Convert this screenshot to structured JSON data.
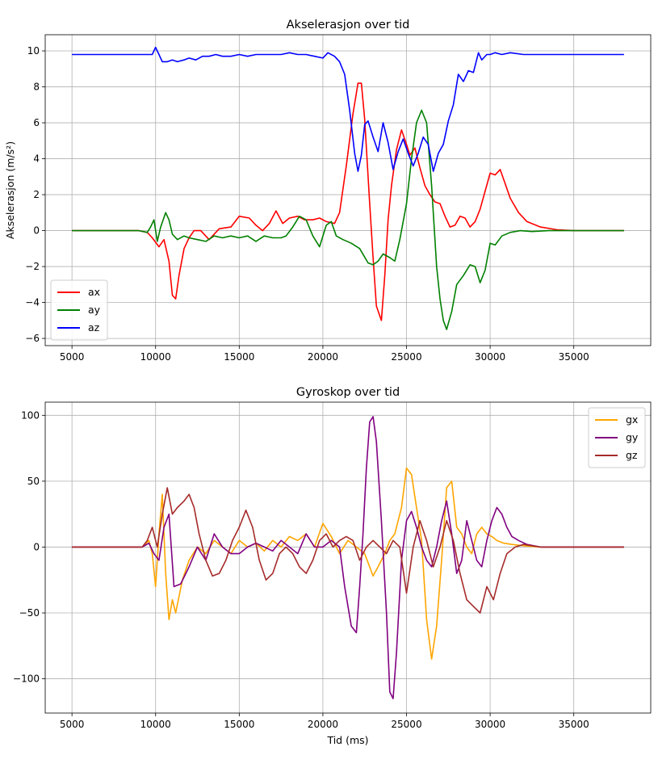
{
  "chart_data": [
    {
      "type": "line",
      "title": "Akselerasjon over tid",
      "xlabel": "",
      "ylabel": "Akselerasjon (m/s²)",
      "xlim": [
        3400,
        39600
      ],
      "ylim": [
        -6.4,
        10.9
      ],
      "xticks": [
        5000,
        10000,
        15000,
        20000,
        25000,
        30000,
        35000
      ],
      "yticks": [
        -6,
        -4,
        -2,
        0,
        2,
        4,
        6,
        8,
        10
      ],
      "grid": true,
      "legend": "lower-left",
      "series": [
        {
          "name": "ax",
          "color": "#ff0000",
          "x": [
            5000,
            9000,
            9500,
            9800,
            10200,
            10500,
            10800,
            11000,
            11200,
            11400,
            11700,
            12000,
            12300,
            12700,
            13200,
            13800,
            14500,
            15000,
            15600,
            16000,
            16400,
            16800,
            17200,
            17600,
            18000,
            18500,
            18900,
            19400,
            19800,
            20200,
            20700,
            21000,
            21400,
            21800,
            22100,
            22300,
            22500,
            22800,
            23000,
            23200,
            23500,
            23700,
            23900,
            24100,
            24400,
            24700,
            25000,
            25200,
            25500,
            25800,
            26100,
            26400,
            26700,
            27000,
            27300,
            27600,
            27900,
            28200,
            28500,
            28800,
            29100,
            29400,
            29700,
            30000,
            30300,
            30600,
            30900,
            31200,
            31700,
            32200,
            33000,
            34000,
            35000,
            36500,
            38000
          ],
          "y": [
            0,
            0,
            -0.1,
            -0.4,
            -0.9,
            -0.5,
            -1.7,
            -3.6,
            -3.8,
            -2.5,
            -1.0,
            -0.4,
            0,
            0,
            -0.5,
            0.1,
            0.2,
            0.8,
            0.7,
            0.3,
            0,
            0.4,
            1.1,
            0.4,
            0.7,
            0.8,
            0.6,
            0.6,
            0.7,
            0.5,
            0.4,
            1.0,
            3.6,
            6.5,
            8.2,
            8.2,
            6.2,
            1.5,
            -1.5,
            -4.2,
            -5.0,
            -2.5,
            0.6,
            2.5,
            4.5,
            5.6,
            4.8,
            4.2,
            4.6,
            3.5,
            2.5,
            2.0,
            1.6,
            1.5,
            0.8,
            0.2,
            0.3,
            0.8,
            0.7,
            0.2,
            0.5,
            1.2,
            2.2,
            3.2,
            3.1,
            3.4,
            2.6,
            1.8,
            1.0,
            0.5,
            0.2,
            0.05,
            0,
            0,
            0
          ]
        },
        {
          "name": "ay",
          "color": "#008000",
          "x": [
            5000,
            9000,
            9500,
            9700,
            9900,
            10100,
            10300,
            10600,
            10800,
            11000,
            11300,
            11700,
            12000,
            12500,
            13000,
            13500,
            14000,
            14500,
            15000,
            15500,
            16000,
            16500,
            17000,
            17500,
            17800,
            18200,
            18600,
            19000,
            19400,
            19800,
            20200,
            20500,
            20800,
            21200,
            21700,
            22200,
            22700,
            23000,
            23300,
            23600,
            24000,
            24300,
            24600,
            25000,
            25300,
            25600,
            25900,
            26200,
            26500,
            26800,
            27000,
            27200,
            27400,
            27700,
            28000,
            28400,
            28800,
            29100,
            29400,
            29700,
            30000,
            30300,
            30700,
            31200,
            31800,
            32500,
            33500,
            35000,
            36500,
            38000
          ],
          "y": [
            0,
            0,
            -0.1,
            0.2,
            0.6,
            -0.6,
            0.2,
            1.0,
            0.6,
            -0.2,
            -0.5,
            -0.3,
            -0.4,
            -0.5,
            -0.6,
            -0.3,
            -0.4,
            -0.3,
            -0.4,
            -0.3,
            -0.6,
            -0.3,
            -0.4,
            -0.4,
            -0.3,
            0.2,
            0.8,
            0.6,
            -0.3,
            -0.9,
            0.3,
            0.5,
            -0.3,
            -0.5,
            -0.7,
            -1.0,
            -1.8,
            -1.9,
            -1.7,
            -1.3,
            -1.5,
            -1.7,
            -0.5,
            1.5,
            4.0,
            6.0,
            6.7,
            6.0,
            2.5,
            -2.0,
            -3.8,
            -5.0,
            -5.5,
            -4.5,
            -3.0,
            -2.5,
            -1.9,
            -2.0,
            -2.9,
            -2.2,
            -0.7,
            -0.8,
            -0.3,
            -0.1,
            0,
            -0.05,
            0,
            0,
            0,
            0
          ]
        },
        {
          "name": "az",
          "color": "#0000ff",
          "x": [
            5000,
            6000,
            7000,
            8000,
            9000,
            9500,
            9800,
            10000,
            10200,
            10400,
            10700,
            11000,
            11300,
            11700,
            12000,
            12400,
            12800,
            13200,
            13600,
            14000,
            14500,
            15000,
            15500,
            16000,
            16500,
            17000,
            17500,
            18000,
            18500,
            19000,
            19500,
            20000,
            20300,
            20700,
            21000,
            21300,
            21600,
            21900,
            22100,
            22300,
            22500,
            22700,
            23000,
            23300,
            23600,
            23900,
            24200,
            24500,
            24800,
            25100,
            25400,
            25700,
            26000,
            26300,
            26600,
            26900,
            27200,
            27500,
            27800,
            28100,
            28400,
            28700,
            29000,
            29300,
            29500,
            29800,
            30000,
            30300,
            30700,
            31200,
            32000,
            33000,
            34000,
            35000,
            36000,
            37000,
            38000
          ],
          "y": [
            9.8,
            9.8,
            9.8,
            9.8,
            9.8,
            9.8,
            9.8,
            10.2,
            9.8,
            9.4,
            9.4,
            9.5,
            9.4,
            9.5,
            9.6,
            9.5,
            9.7,
            9.7,
            9.8,
            9.7,
            9.7,
            9.8,
            9.7,
            9.8,
            9.8,
            9.8,
            9.8,
            9.9,
            9.8,
            9.8,
            9.7,
            9.6,
            9.9,
            9.7,
            9.4,
            8.7,
            6.7,
            4.3,
            3.3,
            4.2,
            5.9,
            6.1,
            5.2,
            4.4,
            6.0,
            4.9,
            3.4,
            4.4,
            5.1,
            4.3,
            3.6,
            4.3,
            5.2,
            4.8,
            3.3,
            4.3,
            4.8,
            6.1,
            7.0,
            8.7,
            8.3,
            8.9,
            8.8,
            9.9,
            9.5,
            9.8,
            9.8,
            9.9,
            9.8,
            9.9,
            9.8,
            9.8,
            9.8,
            9.8,
            9.8,
            9.8,
            9.8
          ]
        }
      ]
    },
    {
      "type": "line",
      "title": "Gyroskop over tid",
      "xlabel": "Tid (ms)",
      "ylabel": "",
      "xlim": [
        3400,
        39600
      ],
      "ylim": [
        -126,
        110
      ],
      "xticks": [
        5000,
        10000,
        15000,
        20000,
        25000,
        30000,
        35000
      ],
      "yticks": [
        -100,
        -50,
        0,
        50,
        100
      ],
      "grid": true,
      "legend": "upper-right",
      "series": [
        {
          "name": "gx",
          "color": "#ffa500",
          "x": [
            5000,
            9200,
            9600,
            9800,
            10000,
            10200,
            10400,
            10600,
            10800,
            11000,
            11200,
            11600,
            12000,
            12500,
            13000,
            13500,
            14000,
            14500,
            15000,
            15500,
            16000,
            16500,
            17000,
            17500,
            18000,
            18500,
            19000,
            19500,
            20000,
            20500,
            21000,
            21500,
            22000,
            22500,
            23000,
            23300,
            23700,
            24000,
            24300,
            24700,
            25000,
            25300,
            25600,
            25900,
            26200,
            26500,
            26800,
            27100,
            27400,
            27700,
            28000,
            28300,
            28600,
            28900,
            29200,
            29500,
            29800,
            30100,
            30400,
            30800,
            31300,
            32000,
            33000,
            34000,
            35000,
            38000
          ],
          "y": [
            0,
            0,
            5,
            -5,
            -30,
            10,
            40,
            -20,
            -55,
            -40,
            -50,
            -25,
            -10,
            0,
            -5,
            5,
            0,
            -5,
            5,
            0,
            3,
            -3,
            5,
            0,
            8,
            5,
            10,
            0,
            18,
            8,
            -5,
            5,
            0,
            -5,
            -22,
            -15,
            -5,
            5,
            10,
            30,
            60,
            55,
            30,
            5,
            -55,
            -85,
            -60,
            -10,
            45,
            50,
            15,
            10,
            0,
            -5,
            10,
            15,
            10,
            8,
            5,
            3,
            2,
            1,
            0,
            0,
            0,
            0
          ]
        },
        {
          "name": "gy",
          "color": "#800080",
          "x": [
            5000,
            9200,
            9600,
            9900,
            10200,
            10500,
            10800,
            11100,
            11500,
            12000,
            12500,
            13000,
            13500,
            14000,
            14500,
            15000,
            15500,
            16000,
            16500,
            17000,
            17500,
            18000,
            18500,
            19000,
            19500,
            20000,
            20500,
            21000,
            21300,
            21700,
            22000,
            22200,
            22400,
            22600,
            22800,
            23000,
            23200,
            23500,
            23800,
            24000,
            24200,
            24400,
            24700,
            25000,
            25300,
            25600,
            25900,
            26200,
            26500,
            26800,
            27100,
            27400,
            27700,
            28000,
            28300,
            28600,
            28900,
            29200,
            29500,
            29800,
            30100,
            30400,
            30700,
            31000,
            31300,
            31700,
            32200,
            33000,
            34000,
            35000,
            38000
          ],
          "y": [
            0,
            0,
            3,
            -5,
            -10,
            15,
            25,
            -30,
            -28,
            -15,
            0,
            -10,
            10,
            0,
            -5,
            -5,
            0,
            3,
            0,
            -3,
            5,
            0,
            -5,
            10,
            0,
            0,
            5,
            0,
            -30,
            -60,
            -65,
            -30,
            10,
            60,
            95,
            99,
            80,
            20,
            -50,
            -110,
            -115,
            -80,
            -10,
            20,
            27,
            15,
            0,
            -10,
            -15,
            0,
            20,
            35,
            10,
            -20,
            -10,
            20,
            5,
            -10,
            -15,
            5,
            20,
            30,
            25,
            15,
            8,
            5,
            2,
            0,
            0,
            0,
            0
          ]
        },
        {
          "name": "gz",
          "color": "#a52a2a",
          "x": [
            5000,
            9200,
            9500,
            9800,
            10100,
            10400,
            10700,
            11000,
            11300,
            11700,
            12000,
            12300,
            12600,
            13000,
            13400,
            13800,
            14200,
            14600,
            15000,
            15400,
            15800,
            16200,
            16600,
            17000,
            17400,
            17800,
            18200,
            18600,
            19000,
            19400,
            19800,
            20200,
            20600,
            21000,
            21400,
            21800,
            22200,
            22600,
            23000,
            23400,
            23800,
            24200,
            24600,
            25000,
            25400,
            25800,
            26200,
            26600,
            27000,
            27400,
            27800,
            28200,
            28600,
            29000,
            29400,
            29800,
            30200,
            30600,
            31000,
            31500,
            32000,
            33000,
            34000,
            35000,
            38000
          ],
          "y": [
            0,
            0,
            5,
            15,
            0,
            25,
            45,
            25,
            30,
            35,
            40,
            30,
            10,
            -10,
            -22,
            -20,
            -10,
            5,
            15,
            28,
            15,
            -10,
            -25,
            -20,
            -5,
            0,
            -5,
            -15,
            -20,
            -10,
            5,
            10,
            0,
            5,
            8,
            5,
            -10,
            0,
            5,
            0,
            -5,
            5,
            0,
            -35,
            0,
            20,
            5,
            -15,
            0,
            20,
            5,
            -20,
            -40,
            -45,
            -50,
            -30,
            -40,
            -20,
            -5,
            0,
            2,
            0,
            0,
            0,
            0
          ]
        }
      ]
    }
  ]
}
